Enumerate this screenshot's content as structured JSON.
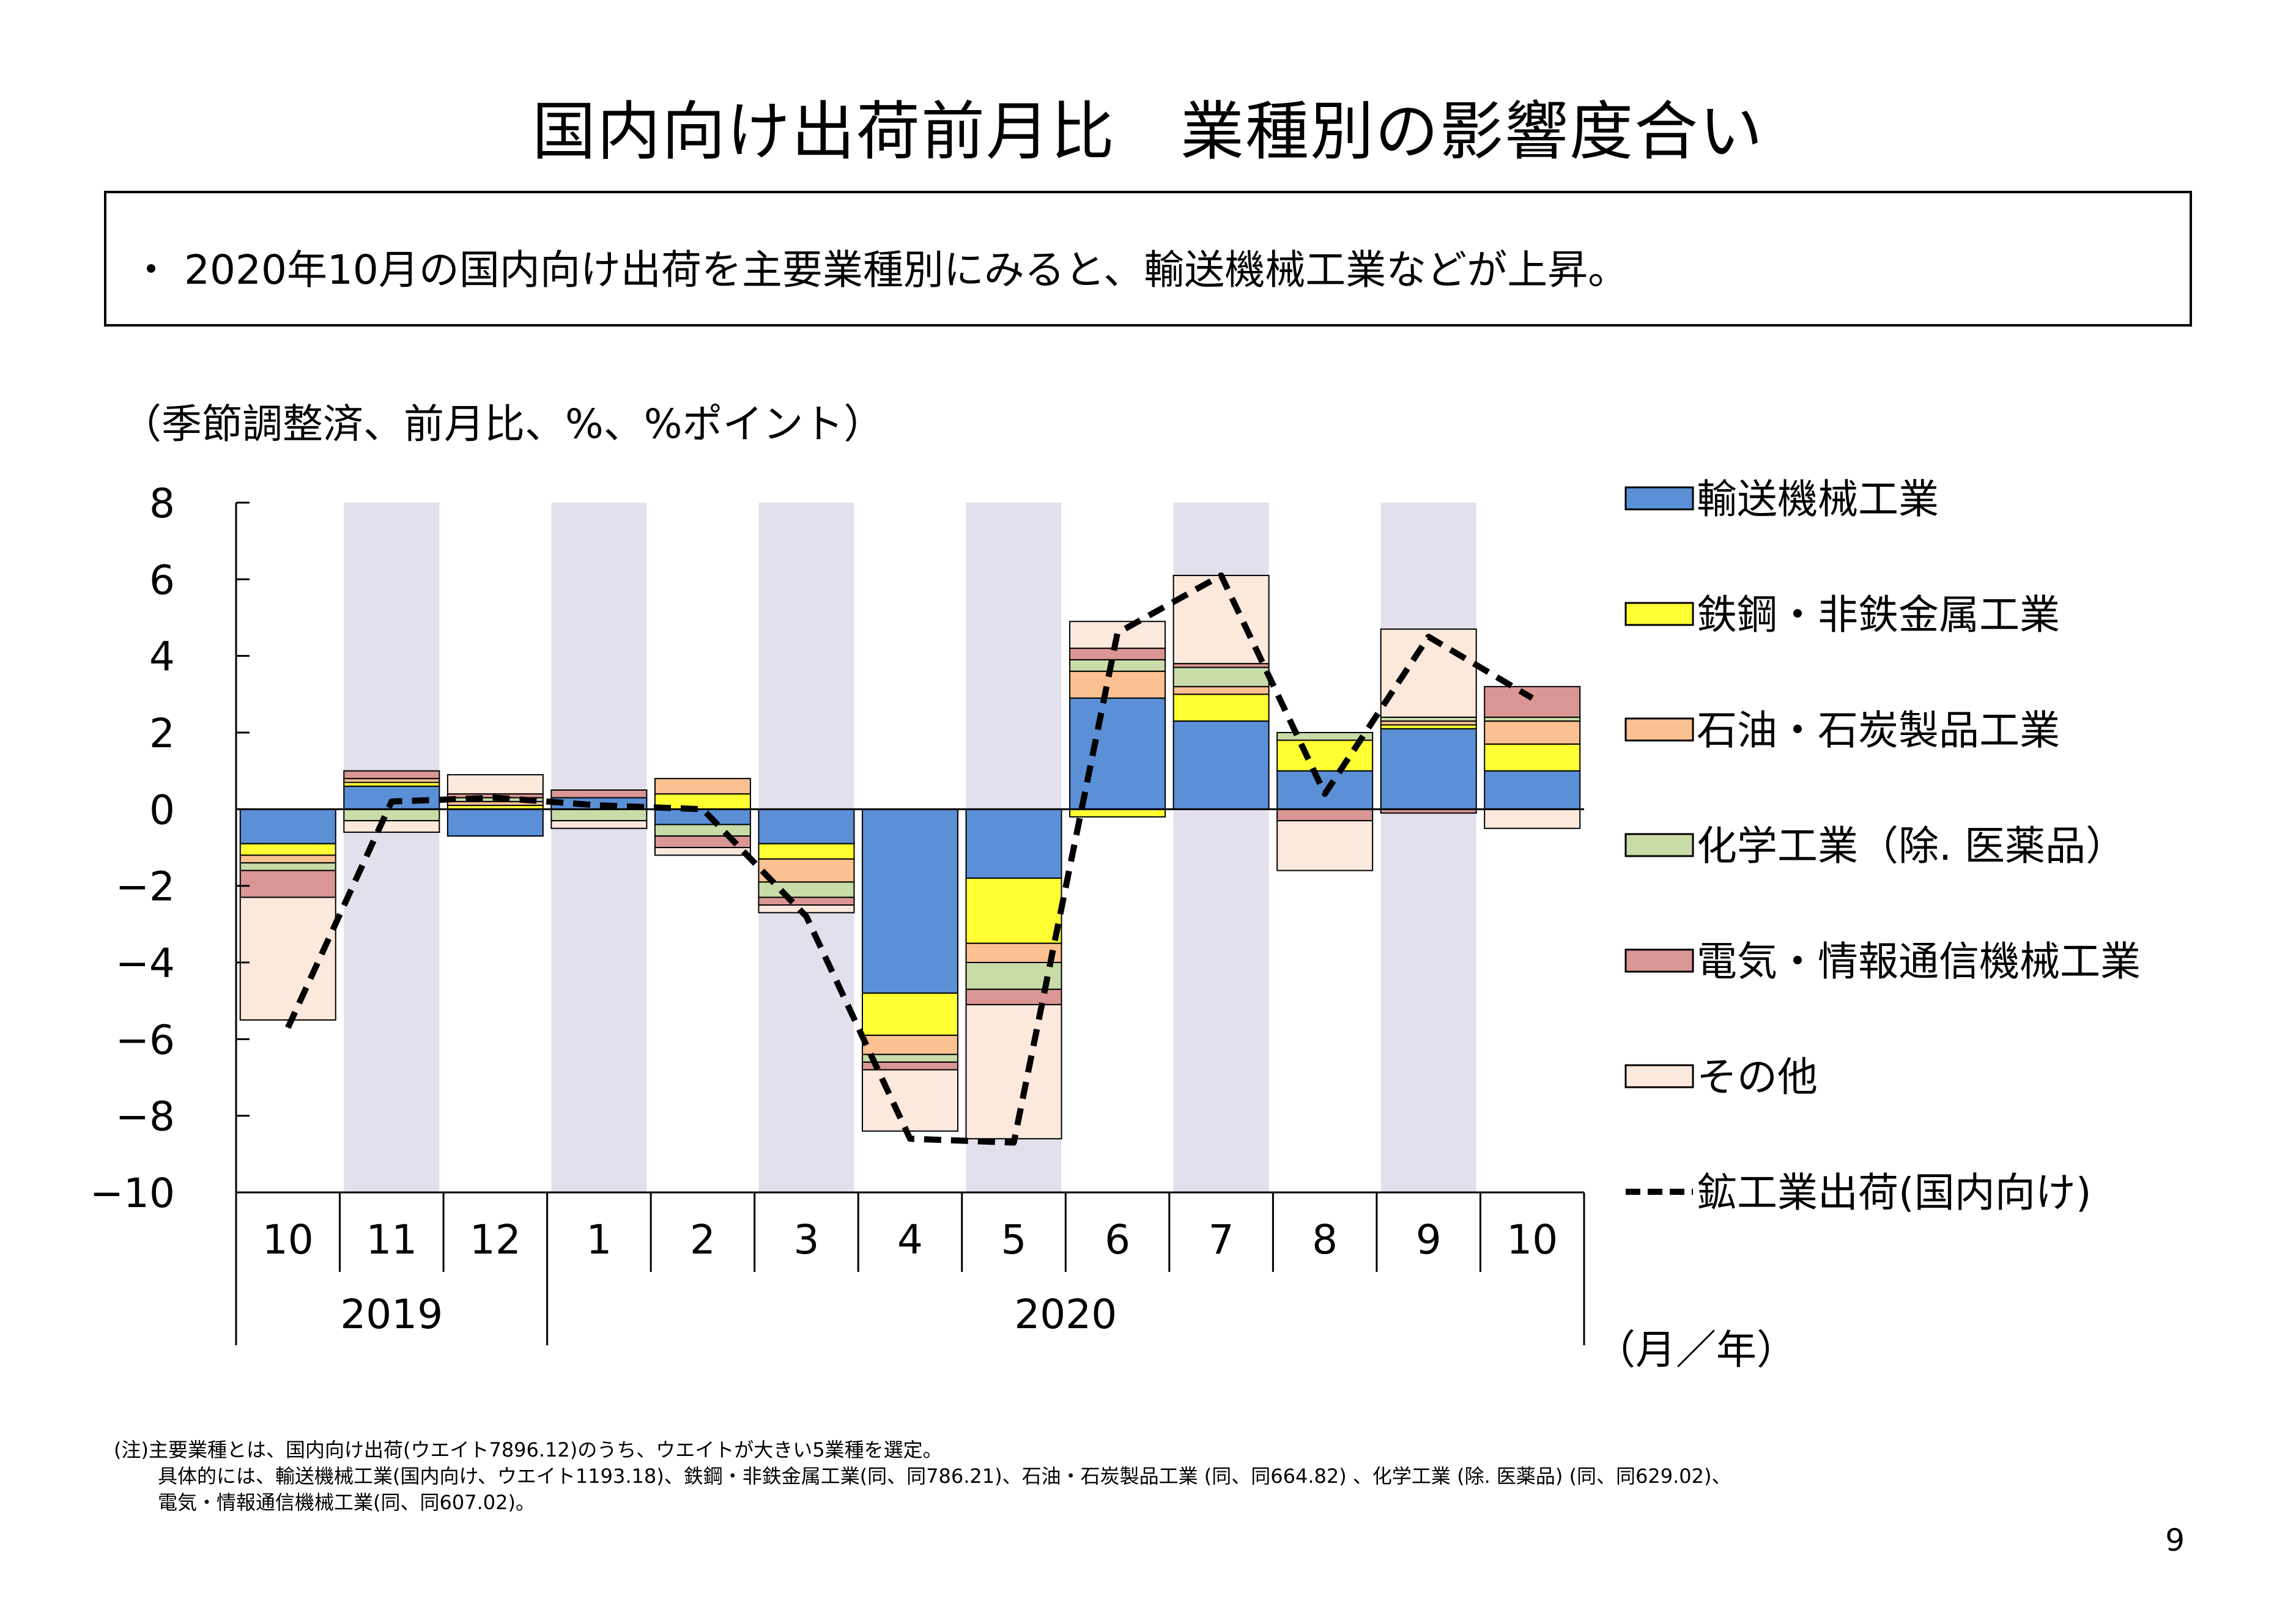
{
  "title": "国内向け出荷前月比　業種別の影響度合い",
  "summary": "・ 2020年10月の国内向け出荷を主要業種別にみると、輸送機械工業などが上昇。",
  "unit_label": "（季節調整済、前月比、%、%ポイント）",
  "axis_unit_label": "（月／年）",
  "notes": [
    "(注)主要業種とは、国内向け出荷(ウエイト7896.12)のうち、ウエイトが大きい5業種を選定。",
    "具体的には、輸送機械工業(国内向け、ウエイト1193.18)、鉄鋼・非鉄金属工業(同、同786.21)、石油・石炭製品工業 (同、同664.82) 、化学工業 (除. 医薬品) (同、同629.02)、",
    "電気・情報通信機械工業(同、同607.02)。"
  ],
  "page_number": "9",
  "chart_data": {
    "type": "bar",
    "stacked": true,
    "categories": [
      "10",
      "11",
      "12",
      "1",
      "2",
      "3",
      "4",
      "5",
      "6",
      "7",
      "8",
      "9",
      "10"
    ],
    "year_groups": [
      {
        "label": "2019",
        "start": 0,
        "end": 2
      },
      {
        "label": "2020",
        "start": 3,
        "end": 12
      }
    ],
    "ylim": [
      -10,
      8
    ],
    "yticks": [
      8,
      6,
      4,
      2,
      0,
      -2,
      -4,
      -6,
      -8,
      -10
    ],
    "ytick_labels": [
      "8",
      "6",
      "4",
      "2",
      "0",
      "−2",
      "−4",
      "−6",
      "−8",
      "−10"
    ],
    "shaded_categories": [
      1,
      3,
      5,
      7,
      9,
      11
    ],
    "shade_color": "#e3dfed",
    "legend_position": "right",
    "series": [
      {
        "name": "輸送機械工業",
        "color": "#5b8fd6",
        "values": [
          -0.9,
          0.6,
          -0.7,
          0.3,
          -0.4,
          -0.9,
          -4.8,
          -1.8,
          2.9,
          2.3,
          1.0,
          2.1,
          1.0
        ]
      },
      {
        "name": "鉄鋼・非鉄金属工業",
        "color": "#ffff33",
        "values": [
          -0.3,
          0.1,
          0.1,
          0.0,
          0.4,
          -0.4,
          -1.1,
          -1.7,
          -0.2,
          0.7,
          0.8,
          0.1,
          0.7
        ]
      },
      {
        "name": "石油・石炭製品工業",
        "color": "#fbc191",
        "values": [
          -0.2,
          0.1,
          0.1,
          0.0,
          0.4,
          -0.6,
          -0.5,
          -0.5,
          0.7,
          0.2,
          0.0,
          0.1,
          0.6
        ]
      },
      {
        "name": "化学工業（除. 医薬品）",
        "color": "#c9dca8",
        "values": [
          -0.2,
          -0.3,
          0.1,
          -0.3,
          -0.3,
          -0.4,
          -0.2,
          -0.7,
          0.3,
          0.5,
          0.2,
          0.1,
          0.1
        ]
      },
      {
        "name": "電気・情報通信機械工業",
        "color": "#d99694",
        "values": [
          -0.7,
          0.2,
          0.1,
          0.2,
          -0.3,
          -0.2,
          -0.2,
          -0.4,
          0.3,
          0.1,
          -0.3,
          -0.1,
          0.8
        ]
      },
      {
        "name": "その他",
        "color": "#fde9dc",
        "values": [
          -3.2,
          -0.3,
          0.5,
          -0.2,
          -0.2,
          -0.2,
          -1.6,
          -3.5,
          0.7,
          2.3,
          -1.3,
          2.3,
          -0.5
        ]
      }
    ],
    "line_series": {
      "name": "鉱工業出荷(国内向け)",
      "style": "dashed",
      "color": "#000000",
      "values": [
        -5.7,
        0.2,
        0.3,
        0.1,
        0.0,
        -2.8,
        -8.6,
        -8.7,
        4.6,
        6.1,
        0.4,
        4.5,
        2.9
      ]
    }
  }
}
